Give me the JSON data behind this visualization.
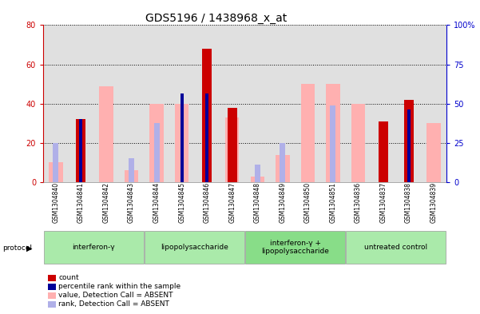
{
  "title": "GDS5196 / 1438968_x_at",
  "samples": [
    "GSM1304840",
    "GSM1304841",
    "GSM1304842",
    "GSM1304843",
    "GSM1304844",
    "GSM1304845",
    "GSM1304846",
    "GSM1304847",
    "GSM1304848",
    "GSM1304849",
    "GSM1304850",
    "GSM1304851",
    "GSM1304836",
    "GSM1304837",
    "GSM1304838",
    "GSM1304839"
  ],
  "count": [
    0,
    32,
    0,
    0,
    0,
    0,
    68,
    38,
    0,
    0,
    0,
    0,
    0,
    31,
    42,
    0
  ],
  "percentile": [
    0,
    32,
    0,
    0,
    0,
    45,
    45,
    0,
    0,
    0,
    0,
    0,
    0,
    0,
    37,
    0
  ],
  "value_absent": [
    10,
    0,
    49,
    6,
    40,
    40,
    0,
    33,
    3,
    14,
    50,
    50,
    40,
    0,
    0,
    30
  ],
  "rank_absent": [
    20,
    0,
    0,
    12,
    30,
    0,
    0,
    0,
    9,
    20,
    0,
    39,
    0,
    0,
    0,
    0
  ],
  "protocols": [
    {
      "label": "interferon-γ",
      "start": 0,
      "end": 4,
      "color": "#aaeaaa"
    },
    {
      "label": "lipopolysaccharide",
      "start": 4,
      "end": 8,
      "color": "#aaeaaa"
    },
    {
      "label": "interferon-γ +\nlipopolysaccharide",
      "start": 8,
      "end": 12,
      "color": "#88dd88"
    },
    {
      "label": "untreated control",
      "start": 12,
      "end": 16,
      "color": "#aaeaaa"
    }
  ],
  "ylim_left": [
    0,
    80
  ],
  "ylim_right": [
    0,
    100
  ],
  "left_ticks": [
    0,
    20,
    40,
    60,
    80
  ],
  "right_ticks": [
    0,
    25,
    50,
    75,
    100
  ],
  "count_color": "#cc0000",
  "percentile_color": "#000099",
  "value_absent_color": "#ffb0b0",
  "rank_absent_color": "#b0b0e8",
  "bg_color": "#e0e0e0",
  "title_fontsize": 10,
  "tick_fontsize": 7,
  "sample_fontsize": 5.5,
  "axis_color_left": "#cc0000",
  "axis_color_right": "#0000cc"
}
